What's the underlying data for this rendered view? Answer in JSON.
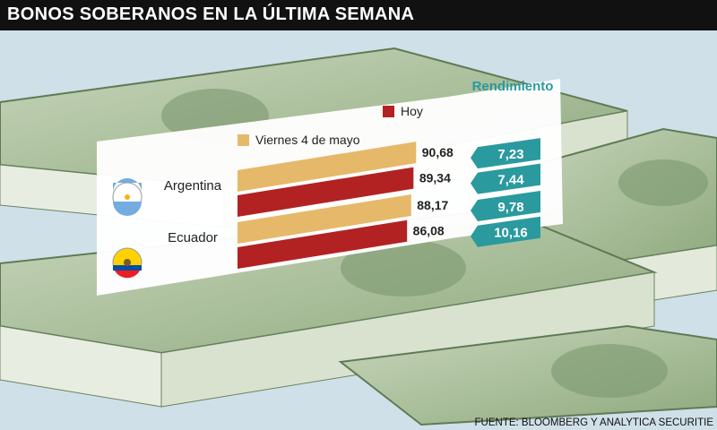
{
  "header": {
    "title": "BONOS SOBERANOS EN LA ÚLTIMA SEMANA"
  },
  "footer": {
    "source": "FUENTE: BLOOMBERG Y ANALYTICA SECURITIE"
  },
  "colors": {
    "series_previous": "#e6b96a",
    "series_today": "#b22222",
    "yield_tag": "#2a9a9e",
    "header_bg": "#111111",
    "rendimiento_text": "#2a9a9e",
    "money_green": "#9bb58a",
    "background": "#cfe0e8"
  },
  "icons": {
    "argentina": "argentina-flag-icon",
    "ecuador": "ecuador-flag-icon"
  },
  "chart_data": {
    "type": "bar",
    "orientation": "horizontal",
    "categories": [
      "Argentina",
      "Ecuador"
    ],
    "series": [
      {
        "name": "Viernes 4 de mayo",
        "values": [
          90.68,
          88.17
        ],
        "labels": [
          "90,68",
          "88,17"
        ]
      },
      {
        "name": "Hoy",
        "values": [
          89.34,
          86.08
        ],
        "labels": [
          "89,34",
          "86,08"
        ]
      }
    ],
    "yield_title": "Rendimiento",
    "yields": [
      {
        "category": "Argentina",
        "series": "Viernes 4 de mayo",
        "value": 7.23,
        "label": "7,23"
      },
      {
        "category": "Argentina",
        "series": "Hoy",
        "value": 7.44,
        "label": "7,44"
      },
      {
        "category": "Ecuador",
        "series": "Viernes 4 de mayo",
        "value": 9.78,
        "label": "9,78"
      },
      {
        "category": "Ecuador",
        "series": "Hoy",
        "value": 10.16,
        "label": "10,16"
      }
    ],
    "legend_position": "top",
    "grid": false
  }
}
